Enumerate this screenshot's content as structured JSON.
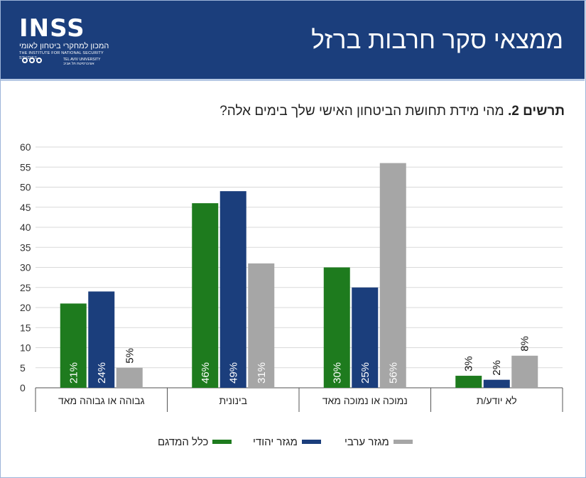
{
  "header": {
    "title": "ממצאי סקר חרבות ברזל",
    "logo": {
      "mark": "INSS",
      "hebrew_name": "המכון למחקרי ביטחון לאומי",
      "english_name": "THE INSTITUTE FOR NATIONAL SECURITY STUDIES",
      "university_he": "אוניברסיטת תל אביב",
      "university_en": "TEL AVIV UNIVERSITY"
    },
    "colors": {
      "background": "#1b3e7c"
    }
  },
  "chart_data": {
    "type": "bar",
    "title_prefix": "תרשים 2.",
    "title": "מהי מידת תחושת הביטחון האישי שלך בימים אלה?",
    "categories": [
      "גבוהה או גבוהה מאד",
      "בינונית",
      "נמוכה או נמוכה מאד",
      "לא יודע/ת"
    ],
    "series": [
      {
        "name": "כלל המדגם",
        "color": "#1e7b1e",
        "values": [
          21,
          46,
          30,
          3
        ],
        "labels": [
          "21%",
          "46%",
          "30%",
          "3%"
        ]
      },
      {
        "name": "מגזר יהודי",
        "color": "#1b3e7c",
        "values": [
          24,
          49,
          25,
          2
        ],
        "labels": [
          "24%",
          "49%",
          "25%",
          "2%"
        ]
      },
      {
        "name": "מגזר ערבי",
        "color": "#a6a6a6",
        "values": [
          5,
          31,
          56,
          8
        ],
        "labels": [
          "5%",
          "31%",
          "56%",
          "8%"
        ]
      }
    ],
    "yticks": [
      "0",
      "5",
      "10",
      "15",
      "20",
      "25",
      "30",
      "35",
      "40",
      "45",
      "50",
      "55",
      "60"
    ],
    "ylim": [
      0,
      60
    ],
    "grid": true,
    "legend_position": "bottom"
  }
}
